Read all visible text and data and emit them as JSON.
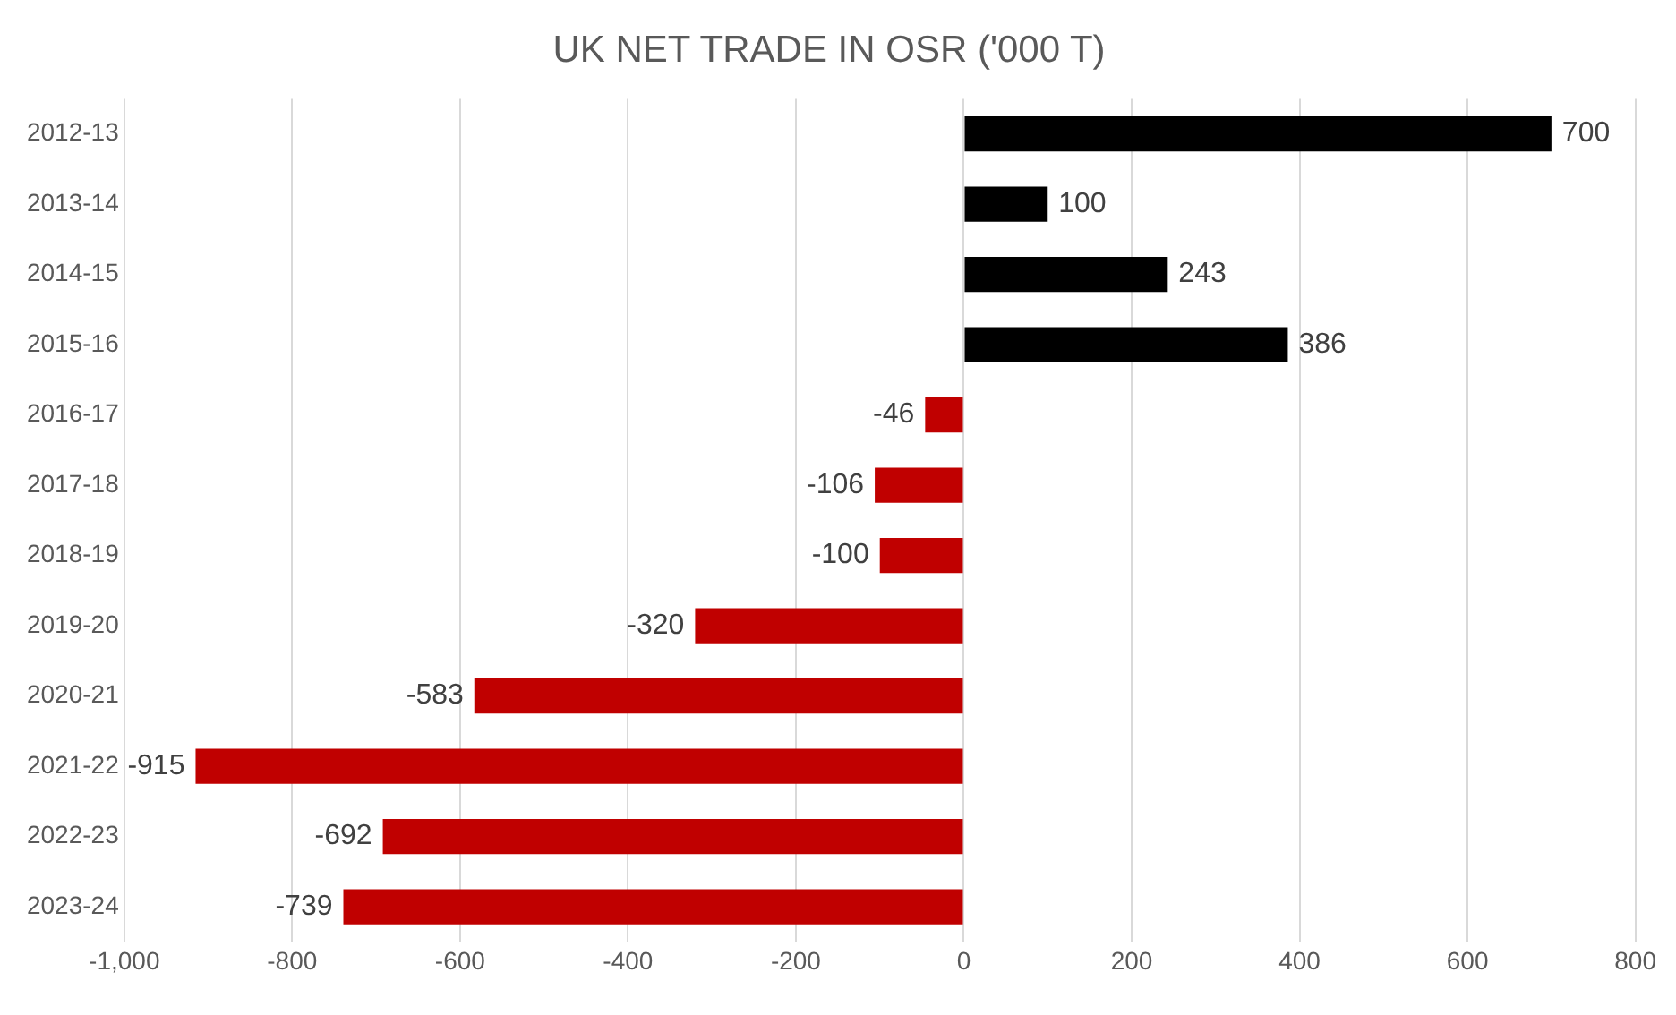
{
  "chart_data": {
    "type": "bar",
    "orientation": "horizontal",
    "title": "UK NET TRADE IN OSR ('000 T)",
    "categories": [
      "2012-13",
      "2013-14",
      "2014-15",
      "2015-16",
      "2016-17",
      "2017-18",
      "2018-19",
      "2019-20",
      "2020-21",
      "2021-22",
      "2022-23",
      "2023-24"
    ],
    "values": [
      700,
      100,
      243,
      386,
      -46,
      -106,
      -100,
      -320,
      -583,
      -915,
      -692,
      -739
    ],
    "colors": [
      "#000000",
      "#000000",
      "#000000",
      "#000000",
      "#c00000",
      "#c00000",
      "#c00000",
      "#c00000",
      "#c00000",
      "#c00000",
      "#c00000",
      "#c00000"
    ],
    "xlim": [
      -1000,
      800
    ],
    "xticks": [
      {
        "value": -1000,
        "label": "-1,000"
      },
      -800,
      -600,
      -400,
      -200,
      0,
      200,
      400,
      600,
      800
    ],
    "grid": "x",
    "data_labels": true,
    "legend": false
  }
}
